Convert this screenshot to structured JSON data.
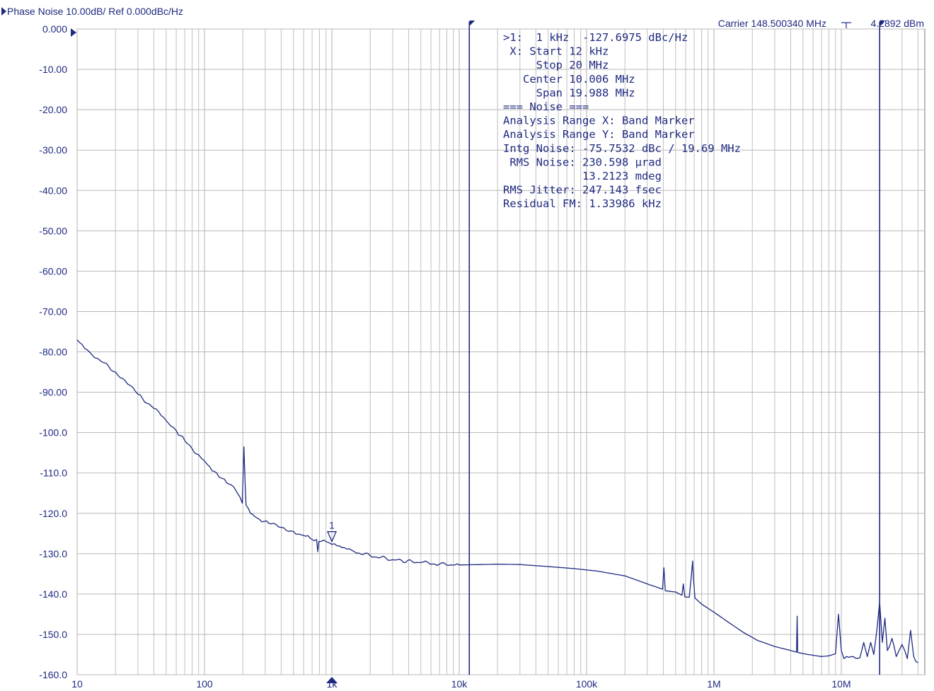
{
  "header": {
    "title": "Phase Noise 10.00dB/ Ref 0.000dBc/Hz",
    "carrier": "Carrier 148.500340 MHz",
    "carrier_power": "4.2892 dBm"
  },
  "info_panel": {
    "lines": [
      ">1:  1 kHz  -127.6975 dBc/Hz",
      " X: Start 12 kHz",
      "     Stop 20 MHz",
      "   Center 10.006 MHz",
      "     Span 19.988 MHz",
      "=== Noise ===",
      "Analysis Range X: Band Marker",
      "Analysis Range Y: Band Marker",
      "Intg Noise: -75.7532 dBc / 19.69 MHz",
      " RMS Noise: 230.598 µrad",
      "            13.2123 mdeg",
      "RMS Jitter: 247.143 fsec",
      "Residual FM: 1.33986 kHz"
    ]
  },
  "colors": {
    "trace": "#1f2a80",
    "grid": "#b8b8b8",
    "text": "#1f2a80"
  },
  "chart_data": {
    "type": "line",
    "title": "Phase Noise 10.00dB/ Ref 0.000dBc/Hz",
    "xscale": "log",
    "xlim": [
      10,
      40000000
    ],
    "ylim": [
      -160,
      0
    ],
    "grid": true,
    "x_tick_labels": [
      {
        "x": 10,
        "label": "10"
      },
      {
        "x": 100,
        "label": "100"
      },
      {
        "x": 1000,
        "label": "1k"
      },
      {
        "x": 10000,
        "label": "10k"
      },
      {
        "x": 100000,
        "label": "100k"
      },
      {
        "x": 1000000,
        "label": "1M"
      },
      {
        "x": 10000000,
        "label": "10M"
      }
    ],
    "y_tick_labels": [
      "0.000",
      "-10.00",
      "-20.00",
      "-30.00",
      "-40.00",
      "-50.00",
      "-60.00",
      "-70.00",
      "-80.00",
      "-90.00",
      "-100.0",
      "-110.0",
      "-120.0",
      "-130.0",
      "-140.0",
      "-150.0",
      "-160.0"
    ],
    "band_markers_hz": [
      12000,
      20000000
    ],
    "marker": {
      "label": "1",
      "x": 1000,
      "y": -127.6975
    },
    "series": [
      {
        "points": [
          [
            10,
            -77
          ],
          [
            12,
            -79.5
          ],
          [
            15,
            -82
          ],
          [
            20,
            -85
          ],
          [
            25,
            -88
          ],
          [
            30,
            -90.5
          ],
          [
            40,
            -94
          ],
          [
            50,
            -97
          ],
          [
            60,
            -99.5
          ],
          [
            70,
            -102
          ],
          [
            80,
            -104
          ],
          [
            90,
            -105.5
          ],
          [
            100,
            -107
          ],
          [
            110,
            -108.5
          ],
          [
            130,
            -111
          ],
          [
            150,
            -112.5
          ],
          [
            170,
            -113.5
          ],
          [
            190,
            -116
          ],
          [
            198,
            -117.5
          ],
          [
            204,
            -103.5
          ],
          [
            208,
            -112
          ],
          [
            212,
            -118
          ],
          [
            230,
            -120
          ],
          [
            270,
            -121.5
          ],
          [
            320,
            -122.5
          ],
          [
            400,
            -123.5
          ],
          [
            500,
            -124.5
          ],
          [
            600,
            -125.5
          ],
          [
            700,
            -126.5
          ],
          [
            760,
            -126.5
          ],
          [
            775,
            -129.5
          ],
          [
            790,
            -127
          ],
          [
            900,
            -127
          ],
          [
            1000,
            -127.7
          ],
          [
            1200,
            -128.5
          ],
          [
            1500,
            -129.5
          ],
          [
            2000,
            -130.5
          ],
          [
            3000,
            -131.5
          ],
          [
            5000,
            -132.2
          ],
          [
            7000,
            -132.6
          ],
          [
            10000,
            -132.8
          ],
          [
            15000,
            -132.7
          ],
          [
            20000,
            -132.6
          ],
          [
            30000,
            -132.7
          ],
          [
            50000,
            -133.2
          ],
          [
            80000,
            -133.7
          ],
          [
            120000,
            -134.3
          ],
          [
            200000,
            -135.5
          ],
          [
            300000,
            -137.5
          ],
          [
            395000,
            -138.8
          ],
          [
            405000,
            -133.5
          ],
          [
            415000,
            -139.2
          ],
          [
            500000,
            -139.5
          ],
          [
            560000,
            -140.3
          ],
          [
            575000,
            -137.5
          ],
          [
            590000,
            -140.7
          ],
          [
            640000,
            -140.8
          ],
          [
            660000,
            -136.5
          ],
          [
            680000,
            -131.8
          ],
          [
            690000,
            -136
          ],
          [
            710000,
            -141
          ],
          [
            800000,
            -142.5
          ],
          [
            1000000,
            -144.5
          ],
          [
            1300000,
            -147
          ],
          [
            1700000,
            -149.5
          ],
          [
            2200000,
            -151.5
          ],
          [
            3000000,
            -153
          ],
          [
            4000000,
            -154
          ],
          [
            4450000,
            -154.4
          ],
          [
            4500000,
            -145.5
          ],
          [
            4550000,
            -154.5
          ],
          [
            5500000,
            -155
          ],
          [
            7000000,
            -155.5
          ],
          [
            8000000,
            -155.3
          ],
          [
            9000000,
            -154.8
          ],
          [
            9500000,
            -145
          ],
          [
            10000000,
            -154
          ],
          [
            10500000,
            -156
          ],
          [
            12000000,
            -155.5
          ],
          [
            14000000,
            -155.8
          ],
          [
            15000000,
            -152
          ],
          [
            16000000,
            -155.5
          ],
          [
            17000000,
            -152
          ],
          [
            18000000,
            -155
          ],
          [
            19000000,
            -149
          ],
          [
            20000000,
            -142
          ],
          [
            21000000,
            -152
          ],
          [
            22000000,
            -146
          ],
          [
            23000000,
            -154
          ],
          [
            25000000,
            -151
          ],
          [
            27000000,
            -155.5
          ],
          [
            30000000,
            -152.5
          ],
          [
            33000000,
            -156
          ],
          [
            35000000,
            -149
          ],
          [
            37000000,
            -155.5
          ],
          [
            40000000,
            -157
          ]
        ]
      }
    ]
  }
}
